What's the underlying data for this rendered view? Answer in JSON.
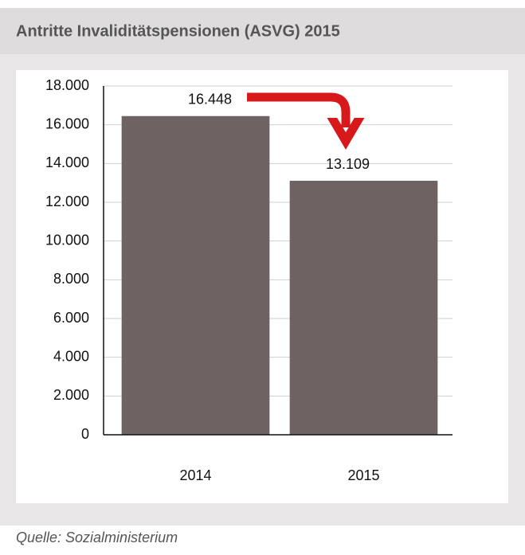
{
  "chart_data": {
    "type": "bar",
    "title": "Antritte Invaliditätspensionen (ASVG) 2015",
    "source": "Quelle: Sozialministerium",
    "categories": [
      "2014",
      "2015"
    ],
    "values": [
      16448,
      13109
    ],
    "value_labels": [
      "16.448",
      "13.109"
    ],
    "color": "#6e6263",
    "ylim": [
      0,
      18000
    ],
    "yticks": [
      0,
      {
        "value": 2000,
        "label": "2.000"
      },
      {
        "value": 4000,
        "label": "4.000"
      },
      {
        "value": 6000,
        "label": "6.000"
      },
      {
        "value": 8000,
        "label": "8.000"
      },
      {
        "value": 10000,
        "label": "10.000"
      },
      {
        "value": 12000,
        "label": "12.000"
      },
      {
        "value": 14000,
        "label": "14.000"
      },
      {
        "value": 16000,
        "label": "16.000"
      },
      {
        "value": 18000,
        "label": "18.000"
      }
    ],
    "grid": true
  }
}
